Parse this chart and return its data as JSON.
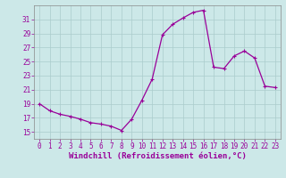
{
  "hours": [
    0,
    1,
    2,
    3,
    4,
    5,
    6,
    7,
    8,
    9,
    10,
    11,
    12,
    13,
    14,
    15,
    16,
    17,
    18,
    19,
    20,
    21,
    22,
    23
  ],
  "windchill": [
    19.0,
    18.0,
    17.5,
    17.2,
    16.8,
    16.3,
    16.1,
    15.8,
    15.2,
    16.8,
    19.5,
    22.5,
    28.8,
    30.3,
    31.2,
    32.0,
    32.3,
    24.2,
    24.0,
    25.8,
    26.5,
    25.5,
    21.5,
    21.3
  ],
  "line_color": "#990099",
  "marker": "+",
  "bg_color": "#cce8e8",
  "grid_color": "#aacccc",
  "xlabel": "Windchill (Refroidissement éolien,°C)",
  "ylim": [
    14,
    33
  ],
  "xlim": [
    -0.5,
    23.5
  ],
  "yticks": [
    15,
    17,
    19,
    21,
    23,
    25,
    27,
    29,
    31
  ],
  "xticks": [
    0,
    1,
    2,
    3,
    4,
    5,
    6,
    7,
    8,
    9,
    10,
    11,
    12,
    13,
    14,
    15,
    16,
    17,
    18,
    19,
    20,
    21,
    22,
    23
  ],
  "tick_fontsize": 5.5,
  "xlabel_fontsize": 6.5,
  "spine_color": "#888888",
  "linewidth": 0.9,
  "markersize": 2.5
}
